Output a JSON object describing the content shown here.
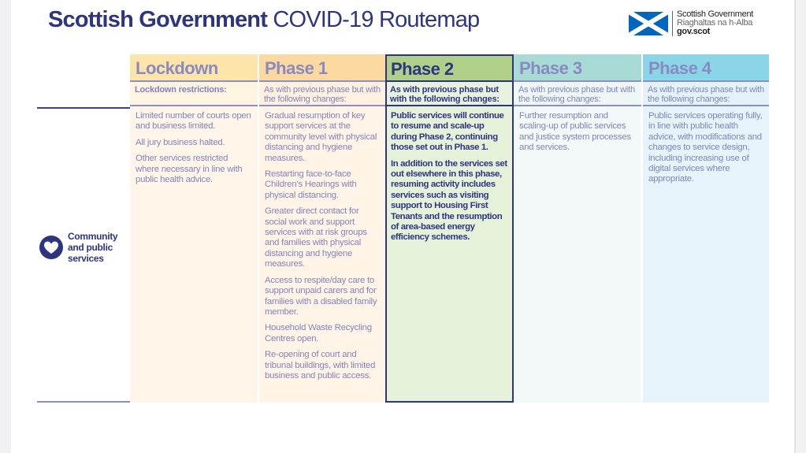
{
  "header": {
    "title_bold": "Scottish Government",
    "title_light": "COVID-19 Routemap",
    "logo": {
      "line1": "Scottish Government",
      "line2": "Riaghaltas na h-Alba",
      "line3": "gov.scot"
    }
  },
  "colors": {
    "navy": "#2e3580",
    "lockdown": "#fde4a8",
    "phase1": "#fcd9a0",
    "phase2": "#b0d08a",
    "phase3": "#a8dbd5",
    "phase4": "#8ad6e8"
  },
  "row": {
    "label_lines": [
      "Community",
      "and public",
      "services"
    ],
    "icon": "heart-icon"
  },
  "columns": [
    {
      "title": "Lockdown",
      "subtitle": "Lockdown restrictions:",
      "items": [
        "Limited number of courts open and business limited.",
        "All jury business halted.",
        "Other services restricted where necessary in line with public health advice."
      ]
    },
    {
      "title": "Phase 1",
      "subtitle": "As with previous phase but with the following changes:",
      "items": [
        "Gradual resumption of key support services at the community level with physical distancing and hygiene measures.",
        "Restarting face-to-face Children’s Hearings with physical distancing.",
        "Greater direct contact for social work and support services with at risk groups and families with physical distancing and hygiene measures.",
        "Access to respite/day care to support unpaid carers and for families with a disabled family member.",
        "Household Waste Recycling Centres open.",
        "Re-opening of court and tribunal buildings, with limited business and public access."
      ]
    },
    {
      "title": "Phase 2",
      "subtitle": "As with previous phase but with the following changes:",
      "items": [
        "Public services will continue to resume and scale-up during Phase 2, continuing those set out in Phase 1.",
        "In addition to the services set out elsewhere in this phase, resuming activity includes services such as visiting support to Housing First Tenants and the resumption of area-based energy efficiency schemes."
      ]
    },
    {
      "title": "Phase 3",
      "subtitle": "As with previous phase but with the following changes:",
      "items": [
        "Further resumption and scaling-up of public services and justice system processes and services."
      ]
    },
    {
      "title": "Phase 4",
      "subtitle": "As with previous phase but with the following changes:",
      "items": [
        "Public services operating fully, in line with public health advice, with modifications and changes to service design, including increasing use of digital services where appropriate."
      ]
    }
  ]
}
